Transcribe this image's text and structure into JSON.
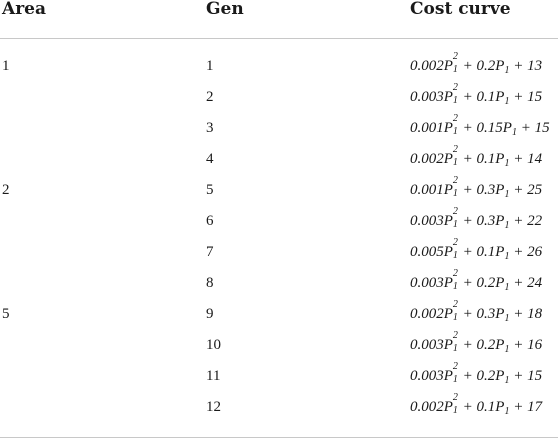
{
  "headers": {
    "area": "Area",
    "gen": "Gen",
    "cost": "Cost curve"
  },
  "rows": [
    {
      "area": "1",
      "gen": "1",
      "a": "0.002P",
      "b": " + 0.2P",
      "c": " + 13"
    },
    {
      "area": "",
      "gen": "2",
      "a": "0.003P",
      "b": " + 0.1P",
      "c": " + 15"
    },
    {
      "area": "",
      "gen": "3",
      "a": "0.001P",
      "b": " + 0.15P",
      "c": " + 15"
    },
    {
      "area": "",
      "gen": "4",
      "a": "0.002P",
      "b": " + 0.1P",
      "c": " + 14"
    },
    {
      "area": "2",
      "gen": "5",
      "a": "0.001P",
      "b": " + 0.3P",
      "c": " + 25"
    },
    {
      "area": "",
      "gen": "6",
      "a": "0.003P",
      "b": " + 0.3P",
      "c": " + 22"
    },
    {
      "area": "",
      "gen": "7",
      "a": "0.005P",
      "b": " + 0.1P",
      "c": " + 26"
    },
    {
      "area": "",
      "gen": "8",
      "a": "0.003P",
      "b": " + 0.2P",
      "c": " + 24"
    },
    {
      "area": "5",
      "gen": "9",
      "a": "0.002P",
      "b": " + 0.3P",
      "c": " + 18"
    },
    {
      "area": "",
      "gen": "10",
      "a": "0.003P",
      "b": " + 0.2P",
      "c": " + 16"
    },
    {
      "area": "",
      "gen": "11",
      "a": "0.003P",
      "b": " + 0.2P",
      "c": " + 15"
    },
    {
      "area": "",
      "gen": "12",
      "a": "0.002P",
      "b": " + 0.1P",
      "c": " + 17"
    }
  ],
  "exponent": "2",
  "subscript": "1"
}
